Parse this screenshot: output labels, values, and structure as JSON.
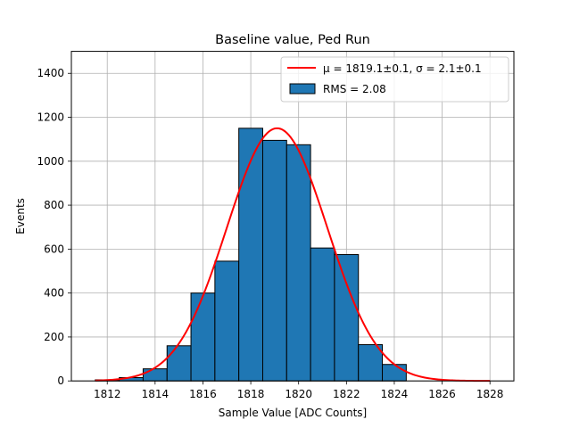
{
  "chart_data": {
    "type": "bar",
    "title": "Baseline value, Ped Run",
    "xlabel": "Sample Value [ADC Counts]",
    "ylabel": "Events",
    "xlim": [
      1810.5,
      1829.0
    ],
    "ylim": [
      0,
      1500
    ],
    "xticks": [
      1812,
      1814,
      1816,
      1818,
      1820,
      1822,
      1824,
      1826,
      1828
    ],
    "yticks": [
      0,
      200,
      400,
      600,
      800,
      1000,
      1200,
      1400
    ],
    "grid": true,
    "bins": [
      {
        "left": 1811.5,
        "right": 1812.5,
        "count": 5
      },
      {
        "left": 1812.5,
        "right": 1813.5,
        "count": 15
      },
      {
        "left": 1813.5,
        "right": 1814.5,
        "count": 55
      },
      {
        "left": 1814.5,
        "right": 1815.5,
        "count": 160
      },
      {
        "left": 1815.5,
        "right": 1816.5,
        "count": 400
      },
      {
        "left": 1816.5,
        "right": 1817.5,
        "count": 545
      },
      {
        "left": 1817.5,
        "right": 1818.5,
        "count": 1150
      },
      {
        "left": 1818.5,
        "right": 1819.5,
        "count": 1095
      },
      {
        "left": 1819.5,
        "right": 1820.5,
        "count": 1075
      },
      {
        "left": 1820.5,
        "right": 1821.5,
        "count": 605
      },
      {
        "left": 1821.5,
        "right": 1822.5,
        "count": 575
      },
      {
        "left": 1822.5,
        "right": 1823.5,
        "count": 165
      },
      {
        "left": 1823.5,
        "right": 1824.5,
        "count": 75
      }
    ],
    "fit": {
      "mu": 1819.1,
      "sigma": 2.1,
      "amplitude": 1150,
      "x_range": [
        1811.5,
        1828.0
      ]
    },
    "legend": {
      "position": "top-right",
      "fit_label": "μ = 1819.1±0.1, σ = 2.1±0.1",
      "hist_label": "RMS = 2.08"
    },
    "colors": {
      "bar_fill": "#1f77b4",
      "bar_edge": "#000000",
      "fit_line": "#ff0000",
      "grid": "#b0b0b0"
    }
  }
}
